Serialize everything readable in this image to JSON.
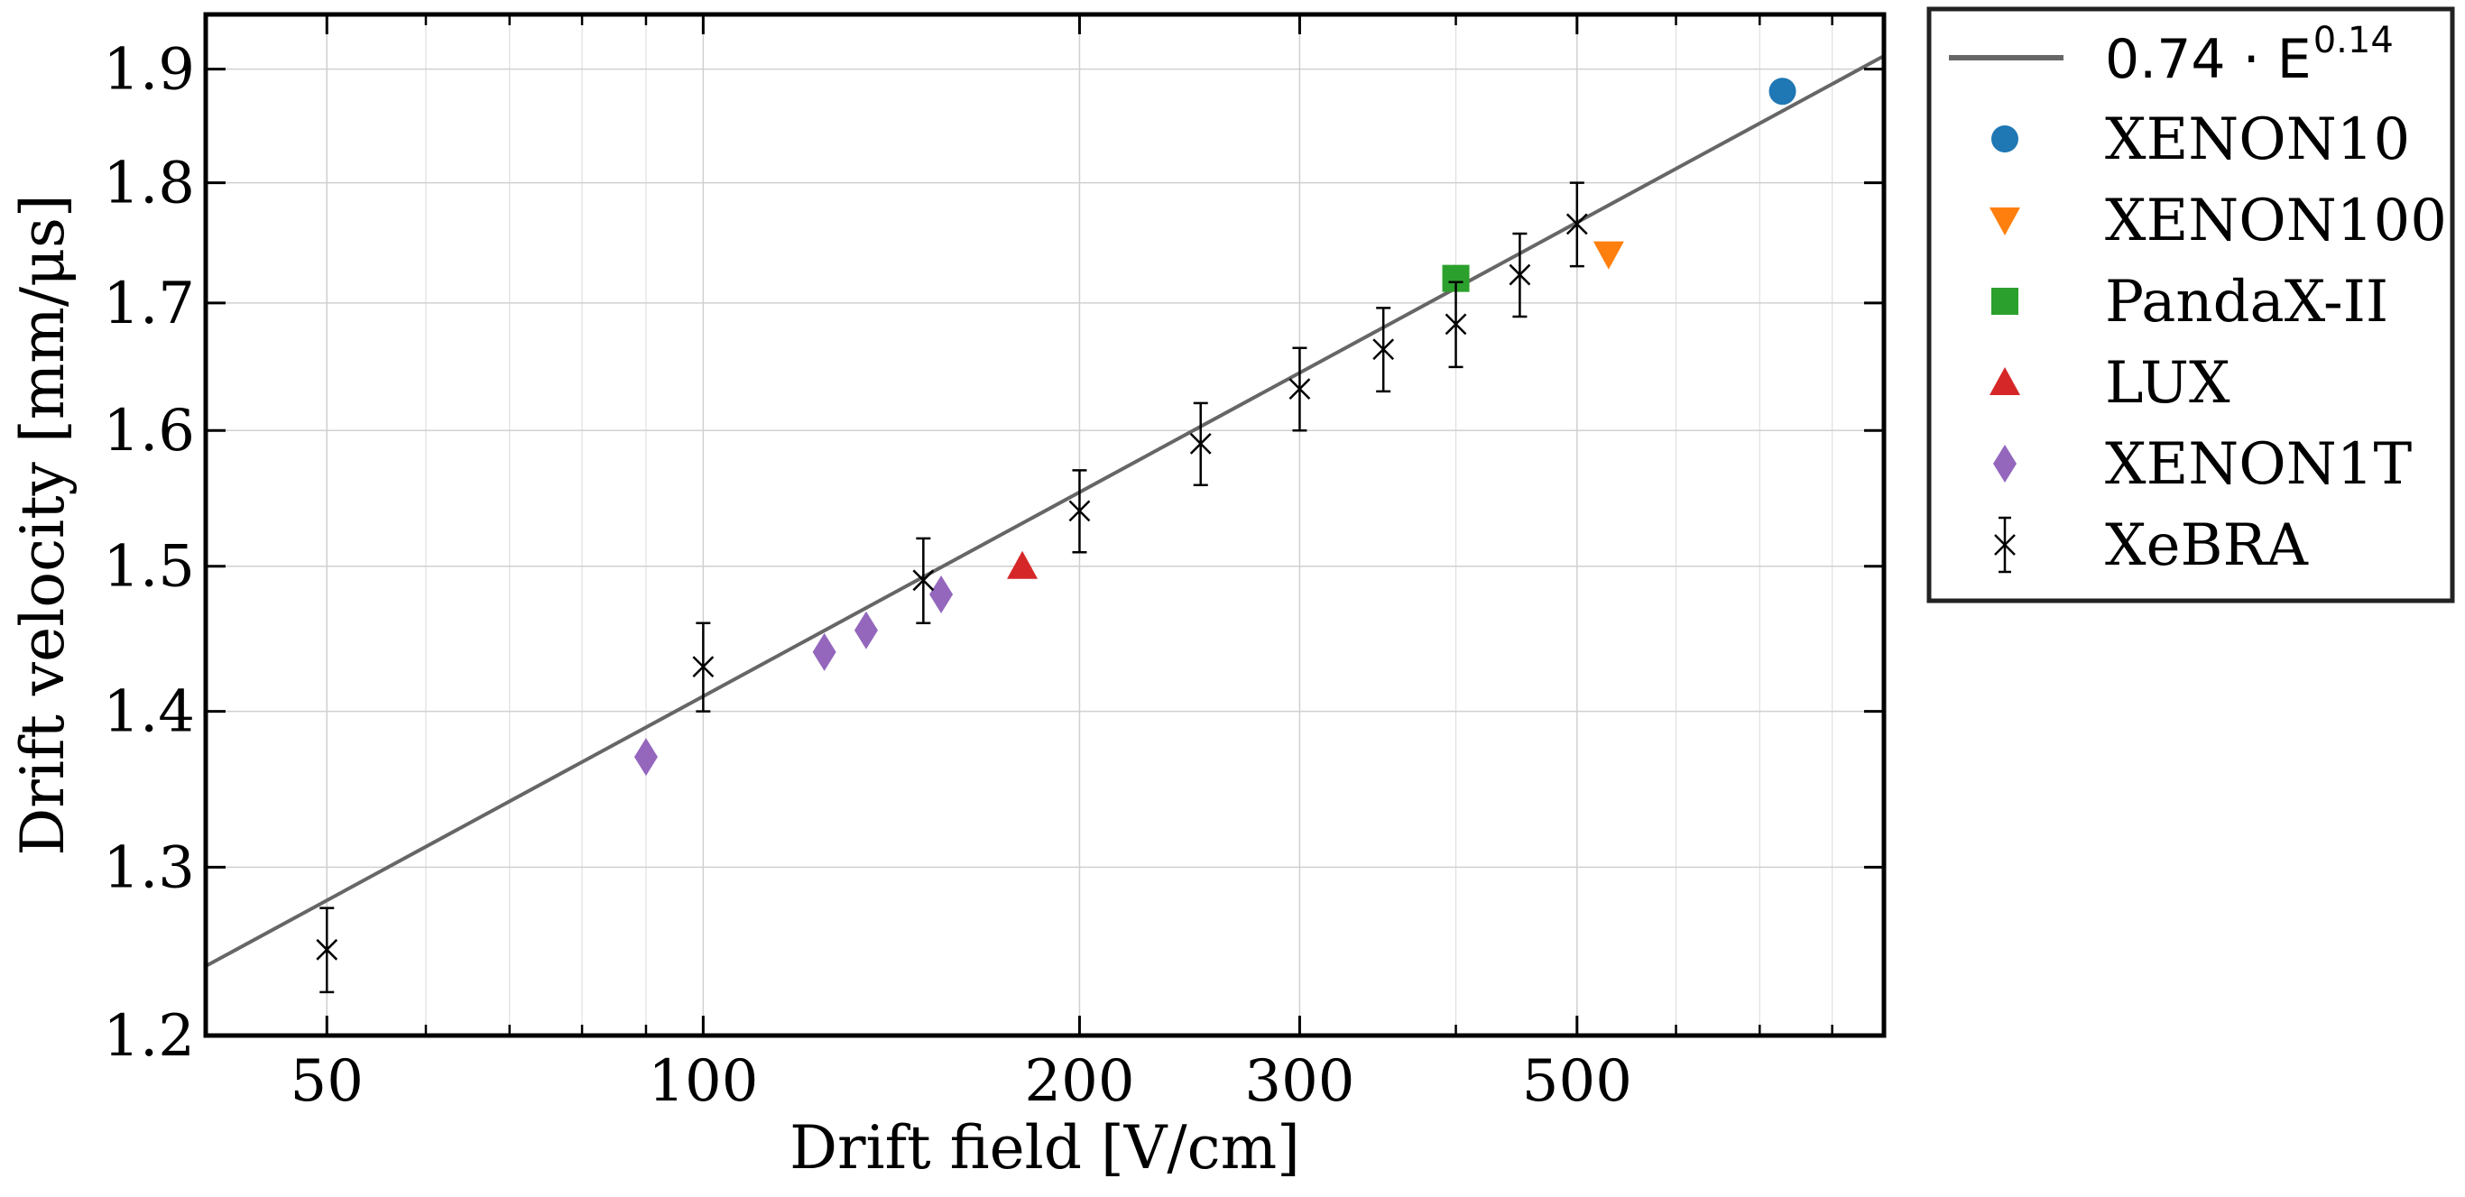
{
  "chart_data": {
    "type": "scatter",
    "xlabel": "Drift field [V/cm]",
    "ylabel": "Drift velocity [mm/μs]",
    "xscale": "log",
    "yscale": "log",
    "xlim": [
      40,
      880
    ],
    "ylim": [
      1.2,
      1.95
    ],
    "grid": true,
    "legend_position": "outside-right",
    "xticks": [
      {
        "value": 50,
        "label": "50"
      },
      {
        "value": 100,
        "label": "100"
      },
      {
        "value": 200,
        "label": "200"
      },
      {
        "value": 300,
        "label": "300"
      },
      {
        "value": 500,
        "label": "500"
      }
    ],
    "x_minor_ticks": [
      40,
      60,
      70,
      80,
      90,
      400,
      600,
      700,
      800
    ],
    "yticks": [
      {
        "value": 1.2,
        "label": "1.2"
      },
      {
        "value": 1.3,
        "label": "1.3"
      },
      {
        "value": 1.4,
        "label": "1.4"
      },
      {
        "value": 1.5,
        "label": "1.5"
      },
      {
        "value": 1.6,
        "label": "1.6"
      },
      {
        "value": 1.7,
        "label": "1.7"
      },
      {
        "value": 1.8,
        "label": "1.8"
      },
      {
        "value": 1.9,
        "label": "1.9"
      }
    ],
    "fit": {
      "name": "0.74 · E",
      "exponent_label": "0.14",
      "a": 0.74,
      "b": 0.14,
      "color": "#666666"
    },
    "series": [
      {
        "name": "XENON10",
        "marker": "circle",
        "color": "#1f77b4",
        "points": [
          {
            "x": 730,
            "y": 1.88
          }
        ]
      },
      {
        "name": "XENON100",
        "marker": "triangle-down",
        "color": "#ff7f0e",
        "points": [
          {
            "x": 530,
            "y": 1.74
          }
        ]
      },
      {
        "name": "PandaX-II",
        "marker": "square",
        "color": "#2ca02c",
        "points": [
          {
            "x": 400,
            "y": 1.72
          }
        ]
      },
      {
        "name": "LUX",
        "marker": "triangle-up",
        "color": "#d62728",
        "points": [
          {
            "x": 180,
            "y": 1.5
          }
        ]
      },
      {
        "name": "XENON1T",
        "marker": "diamond",
        "color": "#9467bd",
        "points": [
          {
            "x": 90,
            "y": 1.37
          },
          {
            "x": 125,
            "y": 1.44
          },
          {
            "x": 135,
            "y": 1.455
          },
          {
            "x": 155,
            "y": 1.48
          }
        ]
      },
      {
        "name": "XeBRA",
        "marker": "x",
        "color": "#000000",
        "points": [
          {
            "x": 50,
            "y": 1.25,
            "yerr": 0.025
          },
          {
            "x": 100,
            "y": 1.43,
            "yerr": 0.03
          },
          {
            "x": 150,
            "y": 1.49,
            "yerr": 0.03
          },
          {
            "x": 200,
            "y": 1.54,
            "yerr": 0.03
          },
          {
            "x": 250,
            "y": 1.59,
            "yerr": 0.031
          },
          {
            "x": 300,
            "y": 1.632,
            "yerr": 0.032
          },
          {
            "x": 350,
            "y": 1.663,
            "yerr": 0.033
          },
          {
            "x": 400,
            "y": 1.683,
            "yerr": 0.034
          },
          {
            "x": 450,
            "y": 1.723,
            "yerr": 0.034
          },
          {
            "x": 500,
            "y": 1.765,
            "yerr": 0.035
          }
        ]
      }
    ]
  }
}
